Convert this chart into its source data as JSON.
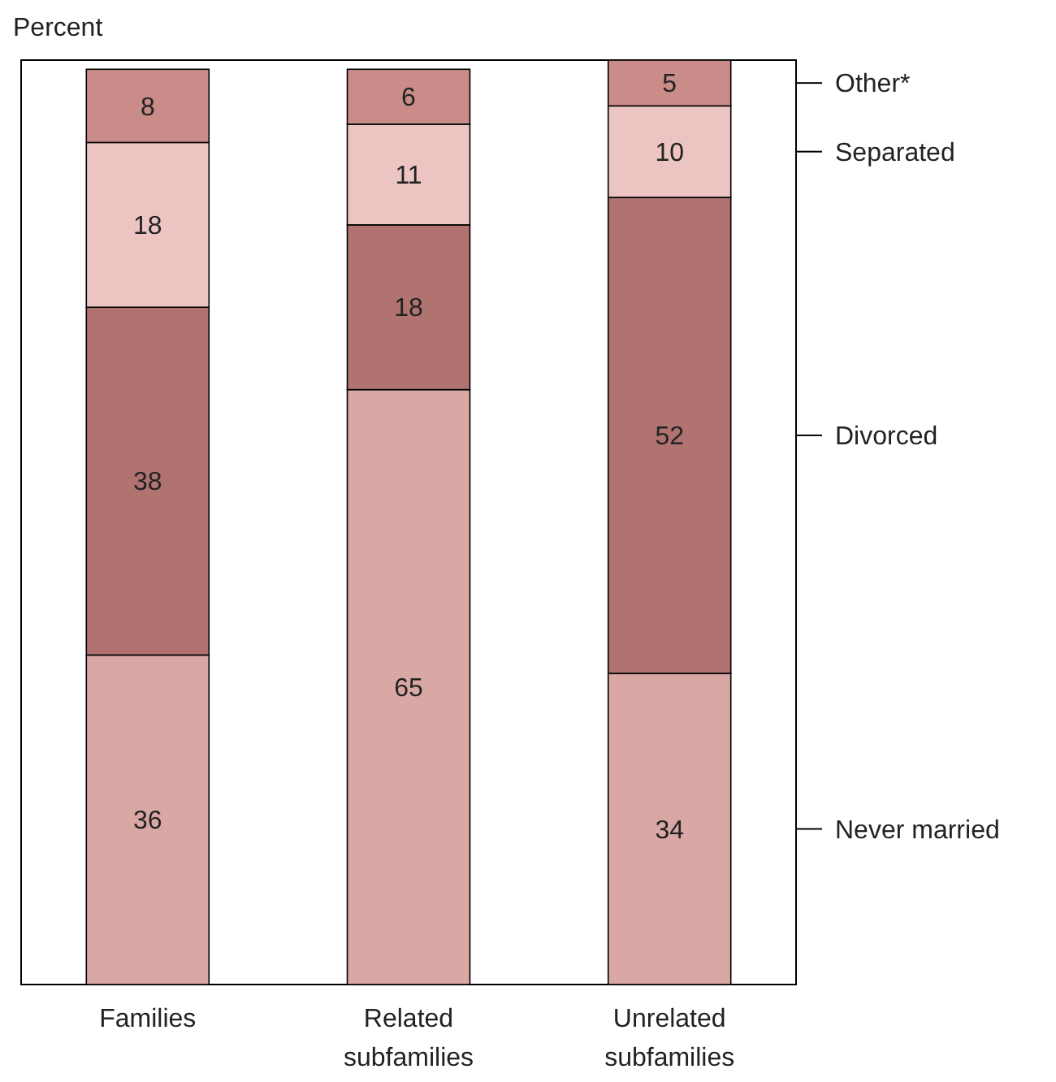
{
  "chart_data": {
    "type": "bar",
    "stacked": true,
    "legend": "right",
    "ylabel": "Percent",
    "data_labels": true,
    "categories": [
      "Families",
      "Related subfamilies",
      "Unrelated subfamilies"
    ],
    "series": [
      {
        "name": "Never married",
        "color": "#d9a8a5",
        "values": [
          36,
          65,
          34
        ]
      },
      {
        "name": "Divorced",
        "color": "#b07370",
        "values": [
          38,
          18,
          52
        ]
      },
      {
        "name": "Separated",
        "color": "#ecc5c2",
        "values": [
          18,
          11,
          10
        ]
      },
      {
        "name": "Other*",
        "color": "#c98c88",
        "values": [
          8,
          6,
          5
        ]
      }
    ]
  }
}
